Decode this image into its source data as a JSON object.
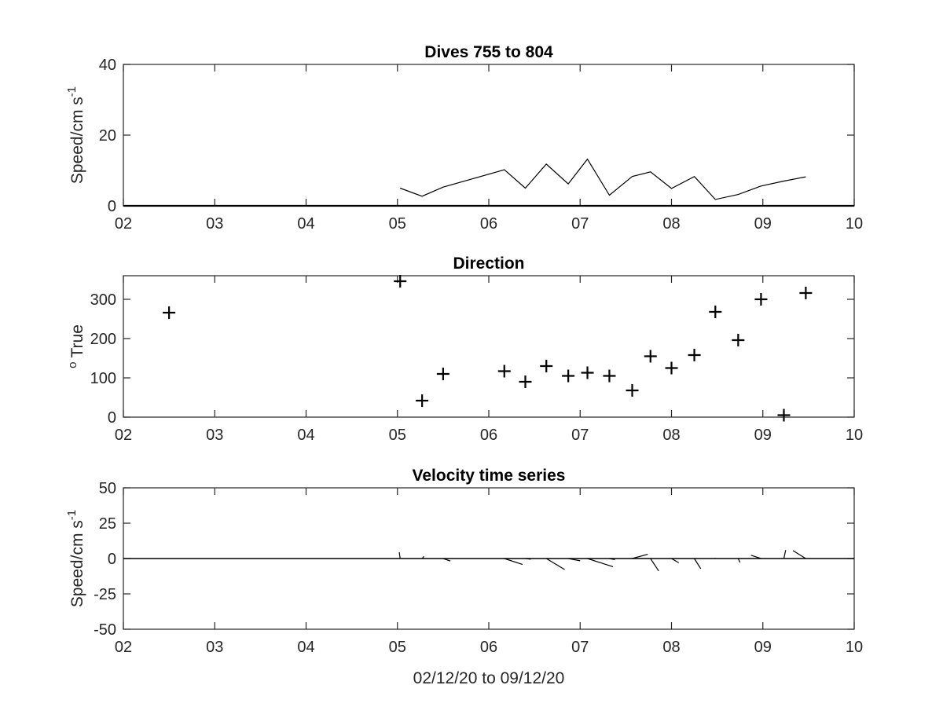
{
  "chart_data": [
    {
      "type": "line",
      "title": "Dives 755 to 804",
      "ylabel": "Speed/cm s",
      "ylabel_sup": "-1",
      "xlabel": "",
      "xlim": [
        2,
        10
      ],
      "ylim": [
        0,
        40
      ],
      "xticks": [
        2,
        3,
        4,
        5,
        6,
        7,
        8,
        9,
        10
      ],
      "xticklabels": [
        "02",
        "03",
        "04",
        "05",
        "06",
        "07",
        "08",
        "09",
        "10"
      ],
      "yticks": [
        0,
        20,
        40
      ],
      "yticklabels": [
        "0",
        "20",
        "40"
      ],
      "grid": false,
      "series": [
        {
          "x": [
            5.03,
            5.27,
            5.5,
            6.17,
            6.4,
            6.63,
            6.87,
            7.08,
            7.32,
            7.57,
            7.77,
            8.0,
            8.25,
            8.48,
            8.73,
            8.98,
            9.23,
            9.47
          ],
          "y": [
            5.0,
            2.7,
            5.3,
            10.2,
            5.0,
            11.8,
            6.2,
            13.2,
            3.0,
            8.3,
            9.6,
            4.9,
            8.3,
            1.8,
            3.2,
            5.6,
            7.0,
            8.2
          ]
        }
      ],
      "baseline": 0
    },
    {
      "type": "scatter",
      "title": "Direction",
      "ylabel": "True",
      "ylabel_sup": "o",
      "xlabel": "",
      "xlim": [
        2,
        10
      ],
      "ylim": [
        0,
        360
      ],
      "xticks": [
        2,
        3,
        4,
        5,
        6,
        7,
        8,
        9,
        10
      ],
      "xticklabels": [
        "02",
        "03",
        "04",
        "05",
        "06",
        "07",
        "08",
        "09",
        "10"
      ],
      "yticks": [
        0,
        100,
        200,
        300
      ],
      "yticklabels": [
        "0",
        "100",
        "200",
        "300"
      ],
      "grid": false,
      "marker": "+",
      "series": [
        {
          "x": [
            2.5,
            5.03,
            5.27,
            5.5,
            6.17,
            6.4,
            6.63,
            6.87,
            7.08,
            7.32,
            7.57,
            7.77,
            8.0,
            8.25,
            8.48,
            8.73,
            8.98,
            9.23,
            9.47
          ],
          "y": [
            266,
            346,
            42,
            110,
            117,
            90,
            130,
            105,
            113,
            105,
            68,
            155,
            125,
            158,
            268,
            196,
            300,
            5,
            316
          ]
        }
      ]
    },
    {
      "type": "quiver",
      "title": "Velocity time series",
      "ylabel": "Speed/cm s",
      "ylabel_sup": "-1",
      "xlabel": "02/12/20 to 09/12/20",
      "xlim": [
        2,
        10
      ],
      "ylim": [
        -50,
        50
      ],
      "xticks": [
        2,
        3,
        4,
        5,
        6,
        7,
        8,
        9,
        10
      ],
      "xticklabels": [
        "02",
        "03",
        "04",
        "05",
        "06",
        "07",
        "08",
        "09",
        "10"
      ],
      "yticks": [
        -50,
        -25,
        0,
        25,
        50
      ],
      "yticklabels": [
        "-50",
        "-25",
        "0",
        "25",
        "50"
      ],
      "grid": false,
      "vectors": [
        {
          "x": 5.03,
          "dx": -0.01,
          "dy": 4.5
        },
        {
          "x": 5.27,
          "dx": 0.02,
          "dy": 1.5
        },
        {
          "x": 5.5,
          "dx": 0.08,
          "dy": -1.8
        },
        {
          "x": 6.17,
          "dx": 0.2,
          "dy": -4.2
        },
        {
          "x": 6.4,
          "dx": 0.06,
          "dy": -0.5
        },
        {
          "x": 6.63,
          "dx": 0.2,
          "dy": -7.8
        },
        {
          "x": 6.87,
          "dx": 0.13,
          "dy": -1.6
        },
        {
          "x": 7.08,
          "dx": 0.28,
          "dy": -5.8
        },
        {
          "x": 7.32,
          "dx": 0.06,
          "dy": -0.8
        },
        {
          "x": 7.57,
          "dx": 0.17,
          "dy": 3.0
        },
        {
          "x": 7.77,
          "dx": 0.09,
          "dy": -8.8
        },
        {
          "x": 8.0,
          "dx": 0.08,
          "dy": -3.0
        },
        {
          "x": 8.25,
          "dx": 0.07,
          "dy": -7.2
        },
        {
          "x": 8.48,
          "dx": -0.01,
          "dy": 0.2
        },
        {
          "x": 8.73,
          "dx": 0.02,
          "dy": -2.8
        },
        {
          "x": 8.98,
          "dx": -0.11,
          "dy": 2.3
        },
        {
          "x": 9.23,
          "dx": 0.02,
          "dy": 6.0
        },
        {
          "x": 9.47,
          "dx": -0.14,
          "dy": 5.6
        }
      ]
    }
  ]
}
